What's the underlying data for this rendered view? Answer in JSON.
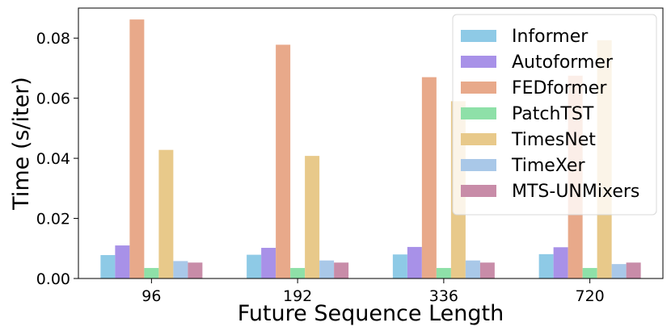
{
  "chart_data": {
    "type": "bar",
    "xlabel": "Future Sequence Length",
    "ylabel": "Time (s/iter)",
    "categories": [
      "96",
      "192",
      "336",
      "720"
    ],
    "ylim": [
      0,
      0.09
    ],
    "yticks": [
      "0.00",
      "0.02",
      "0.04",
      "0.06",
      "0.08"
    ],
    "ytick_values": [
      0,
      0.02,
      0.04,
      0.06,
      0.08
    ],
    "grid": false,
    "legend_position": "top-right",
    "series": [
      {
        "name": "Informer",
        "color": "#8ecae6",
        "values": [
          0.0078,
          0.0079,
          0.008,
          0.0081
        ]
      },
      {
        "name": "Autoformer",
        "color": "#a891e8",
        "values": [
          0.011,
          0.0102,
          0.0105,
          0.0104
        ]
      },
      {
        "name": "FEDformer",
        "color": "#e8a98a",
        "values": [
          0.0862,
          0.0778,
          0.067,
          0.0675
        ]
      },
      {
        "name": "PatchTST",
        "color": "#8ee0a8",
        "values": [
          0.0035,
          0.0035,
          0.0035,
          0.0035
        ]
      },
      {
        "name": "TimesNet",
        "color": "#e8c98a",
        "values": [
          0.0428,
          0.0408,
          0.059,
          0.0793
        ]
      },
      {
        "name": "TimeXer",
        "color": "#a9c8e8",
        "values": [
          0.0058,
          0.006,
          0.006,
          0.0048
        ]
      },
      {
        "name": "MTS-UNMixers",
        "color": "#c88ca8",
        "values": [
          0.0053,
          0.0053,
          0.0053,
          0.0053
        ]
      }
    ]
  }
}
